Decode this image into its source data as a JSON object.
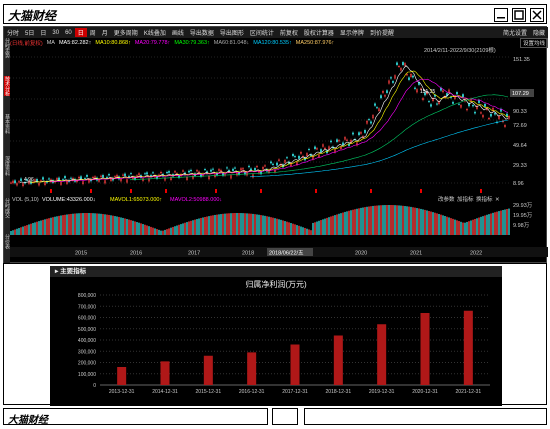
{
  "app": {
    "title": "大猫财经"
  },
  "window_buttons": [
    {
      "name": "minimize-button",
      "icon": "minimize-icon"
    },
    {
      "name": "maximize-button",
      "icon": "maximize-icon"
    },
    {
      "name": "close-button",
      "icon": "close-icon"
    }
  ],
  "menubar": {
    "items": [
      "分时",
      "5日",
      "日",
      "30",
      "60",
      "日",
      "周",
      "月",
      "更多周期",
      "K线叠加",
      "画线",
      "导出数据",
      "导出图形",
      "区间统计",
      "前复权",
      "股权计算器",
      "显示停牌",
      "到价提醒"
    ],
    "selected_index": 5,
    "right_items": [
      "简尤设置",
      "隐藏"
    ]
  },
  "indicators": {
    "label": "(日线,前复权)",
    "ma": "MA",
    "ma5": "MA5:82.282↑",
    "ma10": "MA10:80.868↑",
    "ma20": "MA20:79.778↑",
    "ma30": "MA30:79.363↑",
    "ma60": "MA60:81.048↓",
    "ma120": "MA120:80.535↑",
    "ma250": "MA250:87.976↑",
    "date_range": "2014/2/11-2022/9/30(2109根)",
    "settings": "设置均线"
  },
  "side_tabs": [
    "分时走势",
    "技术分析",
    "基本资料",
    "深度资料",
    "分时成交",
    "分价表"
  ],
  "side_tab_selected": 1,
  "price_axis": [
    "151.35",
    "107.29",
    "90.33",
    "72.69",
    "49.64",
    "29.33",
    "8.96"
  ],
  "price_labels": {
    "high": "151.35",
    "low": "4.96",
    "current": "107.29"
  },
  "volume": {
    "label": "VOL (5,10)",
    "vol": "VOLUME:43326.000↓",
    "mavol1": "MAVOL1:65073.000↑",
    "mavol2": "MAVOL2:50988.000↓",
    "right_controls": [
      "改参数",
      "加指标",
      "换指标",
      "✕"
    ],
    "axis": [
      "29.93万",
      "19.95万",
      "9.98万"
    ]
  },
  "time_axis": {
    "labels": [
      "2015",
      "2016",
      "2017",
      "2018",
      "2020",
      "2021",
      "2022"
    ],
    "highlight": "2018/06/22/五"
  },
  "panel": {
    "title": "主要指标"
  },
  "chart_data": {
    "type": "bar",
    "title": "归属净利润(万元)",
    "categories": [
      "2013-12-31",
      "2014-12-31",
      "2015-12-31",
      "2016-12-31",
      "2017-12-31",
      "2018-12-31",
      "2019-12-31",
      "2020-12-31",
      "2021-12-31"
    ],
    "values": [
      160000,
      210000,
      260000,
      290000,
      360000,
      440000,
      540000,
      640000,
      660000
    ],
    "yticks": [
      "0",
      "100,000",
      "200,000",
      "300,000",
      "400,000",
      "500,000",
      "600,000",
      "700,000",
      "800,000"
    ],
    "ylim": [
      0,
      800000
    ],
    "bar_color": "#b01818",
    "grid": true
  },
  "bottom": {
    "title": "大猫财经"
  }
}
